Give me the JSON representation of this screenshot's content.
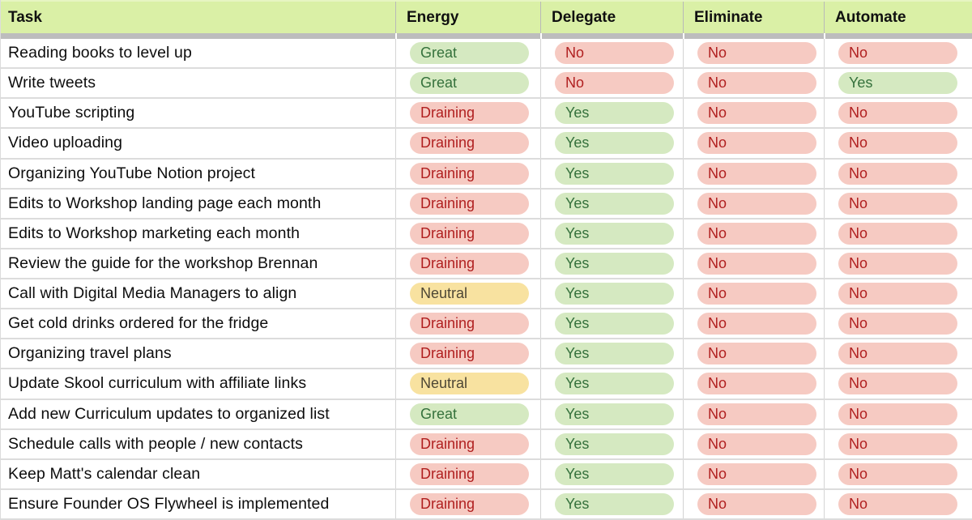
{
  "table": {
    "columns": [
      {
        "key": "task",
        "label": "Task"
      },
      {
        "key": "energy",
        "label": "Energy"
      },
      {
        "key": "delegate",
        "label": "Delegate"
      },
      {
        "key": "eliminate",
        "label": "Eliminate"
      },
      {
        "key": "automate",
        "label": "Automate"
      }
    ],
    "value_styles": {
      "Great": "green",
      "Yes": "green",
      "Draining": "red",
      "No": "red",
      "Neutral": "yellow"
    },
    "rows": [
      {
        "task": "Reading books to level up",
        "energy": "Great",
        "delegate": "No",
        "eliminate": "No",
        "automate": "No"
      },
      {
        "task": "Write tweets",
        "energy": "Great",
        "delegate": "No",
        "eliminate": "No",
        "automate": "Yes"
      },
      {
        "task": "YouTube scripting",
        "energy": "Draining",
        "delegate": "Yes",
        "eliminate": "No",
        "automate": "No"
      },
      {
        "task": "Video uploading",
        "energy": "Draining",
        "delegate": "Yes",
        "eliminate": "No",
        "automate": "No"
      },
      {
        "task": "Organizing YouTube Notion project",
        "energy": "Draining",
        "delegate": "Yes",
        "eliminate": "No",
        "automate": "No"
      },
      {
        "task": "Edits to Workshop landing page each month",
        "energy": "Draining",
        "delegate": "Yes",
        "eliminate": "No",
        "automate": "No"
      },
      {
        "task": "Edits to Workshop marketing each month",
        "energy": "Draining",
        "delegate": "Yes",
        "eliminate": "No",
        "automate": "No"
      },
      {
        "task": "Review the guide for the workshop Brennan",
        "energy": "Draining",
        "delegate": "Yes",
        "eliminate": "No",
        "automate": "No"
      },
      {
        "task": "Call with Digital Media Managers to align",
        "energy": "Neutral",
        "delegate": "Yes",
        "eliminate": "No",
        "automate": "No"
      },
      {
        "task": "Get cold drinks ordered for the fridge",
        "energy": "Draining",
        "delegate": "Yes",
        "eliminate": "No",
        "automate": "No"
      },
      {
        "task": "Organizing travel plans",
        "energy": "Draining",
        "delegate": "Yes",
        "eliminate": "No",
        "automate": "No"
      },
      {
        "task": "Update Skool curriculum with affiliate links",
        "energy": "Neutral",
        "delegate": "Yes",
        "eliminate": "No",
        "automate": "No"
      },
      {
        "task": "Add new Curriculum updates to organized list",
        "energy": "Great",
        "delegate": "Yes",
        "eliminate": "No",
        "automate": "No"
      },
      {
        "task": "Schedule calls with people / new contacts",
        "energy": "Draining",
        "delegate": "Yes",
        "eliminate": "No",
        "automate": "No"
      },
      {
        "task": "Keep Matt's calendar clean",
        "energy": "Draining",
        "delegate": "Yes",
        "eliminate": "No",
        "automate": "No"
      },
      {
        "task": "Ensure Founder OS Flywheel is implemented",
        "energy": "Draining",
        "delegate": "Yes",
        "eliminate": "No",
        "automate": "No"
      }
    ]
  },
  "colors": {
    "header_bg": "#daf0a6",
    "header_top_line": "#e6f5c2",
    "header_divider": "#b9b9b9",
    "divider_bar": "#bdbdbd",
    "grid_line": "#dcdcdc",
    "grid_line_v": "#d4d4d4",
    "pill_green_bg": "#d5e9c1",
    "pill_green_text": "#35713c",
    "pill_red_bg": "#f6cac2",
    "pill_red_text": "#b01f1f",
    "pill_yellow_bg": "#f8e2a0",
    "pill_yellow_text": "#4e4735"
  }
}
